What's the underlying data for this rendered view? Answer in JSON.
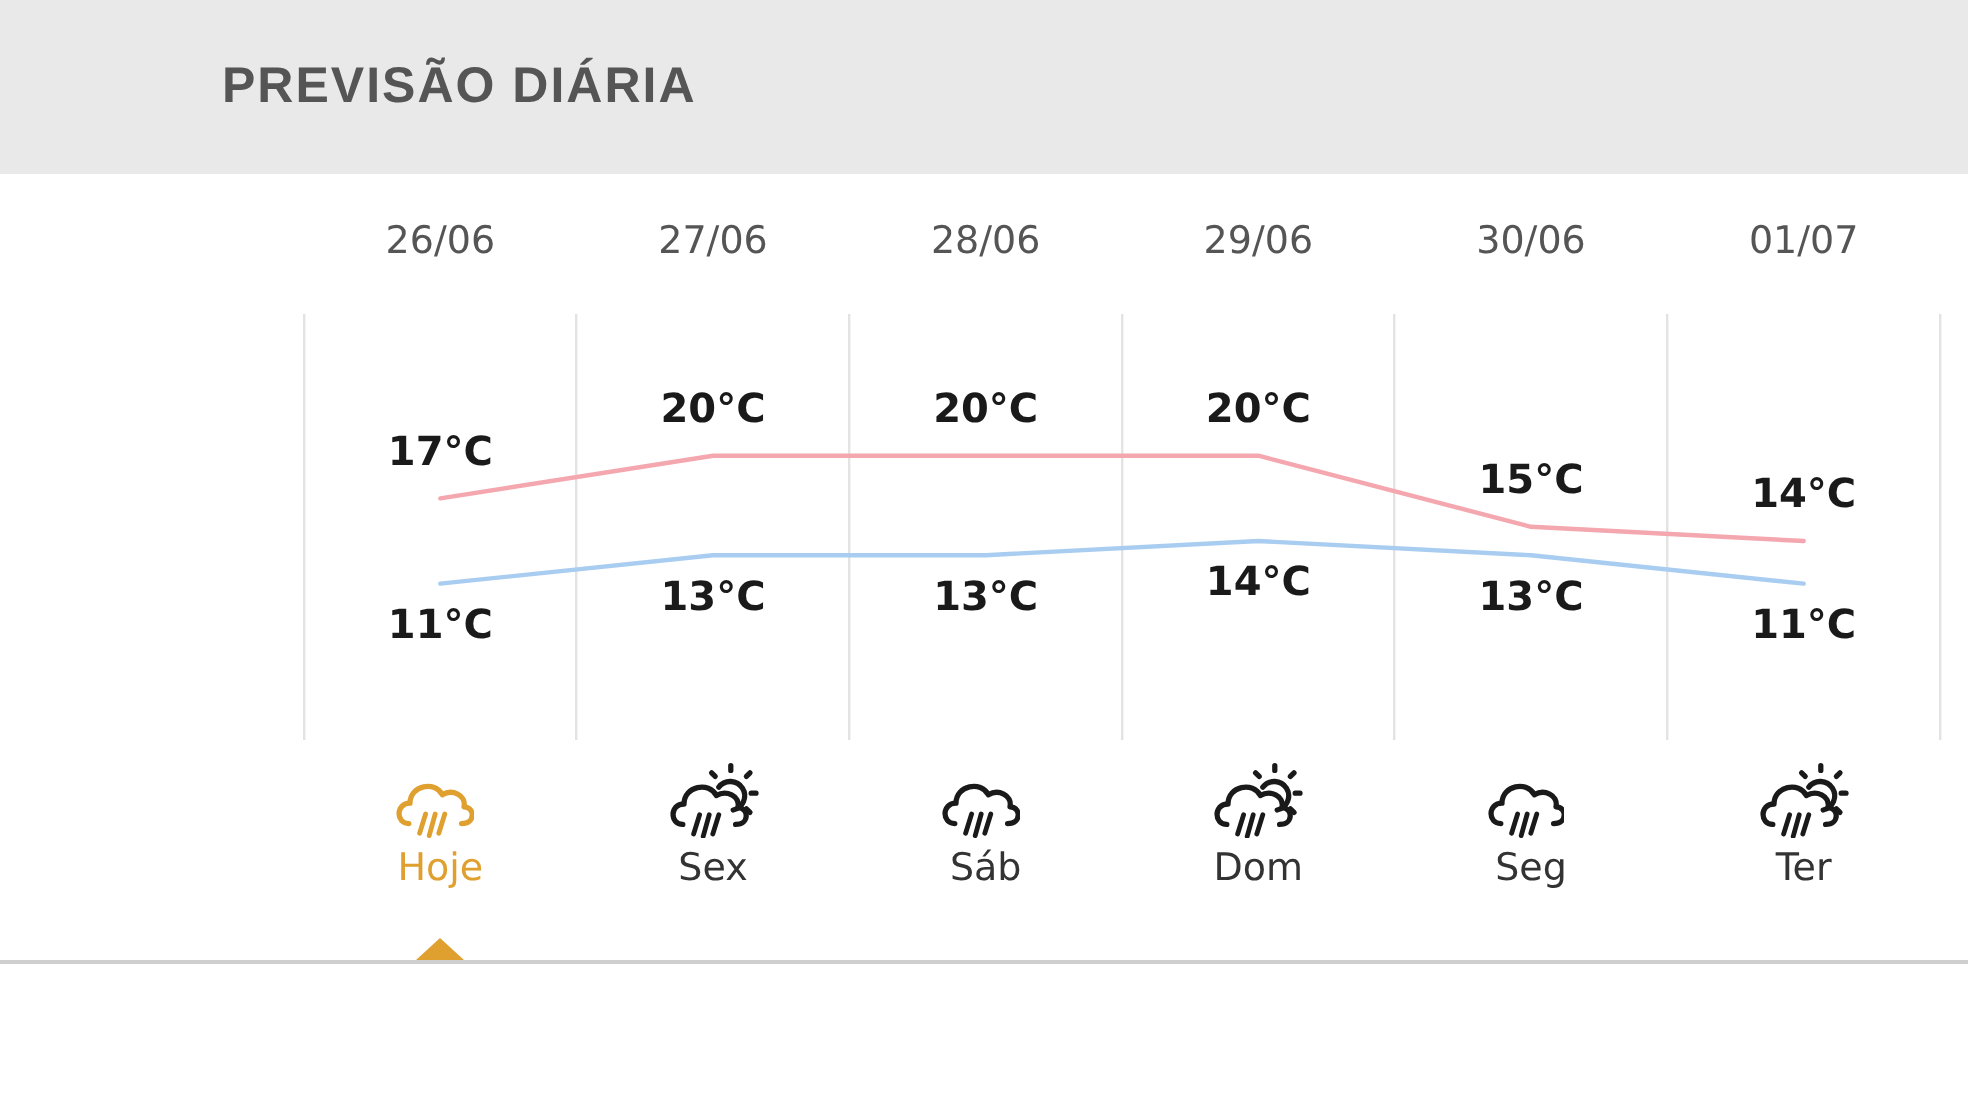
{
  "chart_data": {
    "type": "line",
    "title": "PREVISÃO DIÁRIA",
    "categories": [
      "26/06",
      "27/06",
      "28/06",
      "29/06",
      "30/06",
      "01/07"
    ],
    "series": [
      {
        "color": "#f4a7ae",
        "values": [
          17,
          20,
          20,
          20,
          15,
          14
        ],
        "value_labels": [
          "17°C",
          "20°C",
          "20°C",
          "20°C",
          "15°C",
          "14°C"
        ]
      },
      {
        "color": "#a8cdf0",
        "values": [
          11,
          13,
          13,
          14,
          13,
          11
        ],
        "value_labels": [
          "11°C",
          "13°C",
          "13°C",
          "14°C",
          "13°C",
          "11°C"
        ]
      }
    ],
    "ylim": [
      0,
      30
    ],
    "tick_labels": "x",
    "grid": "x",
    "marker": "none",
    "line_style": "solid",
    "annotations": [
      "Hoje",
      "Sex",
      "Sáb",
      "Dom",
      "Seg",
      "Ter"
    ]
  }
}
